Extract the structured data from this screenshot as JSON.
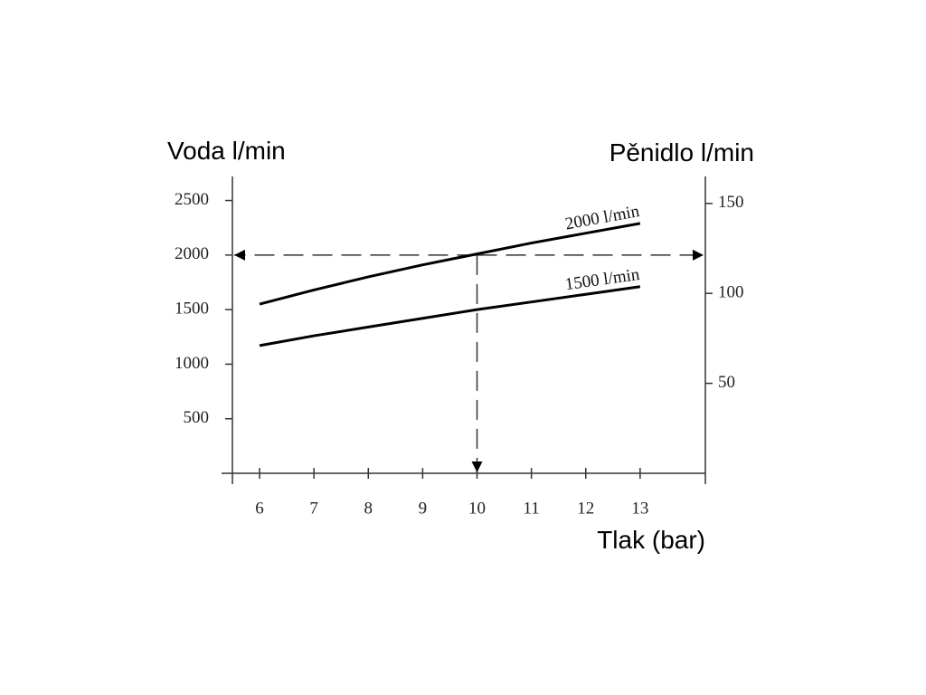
{
  "chart_data": {
    "type": "line",
    "y_title": "Voda l/min",
    "y2_title": "Pěnidlo l/min",
    "x_title": "Tlak (bar)",
    "x": [
      6,
      7,
      8,
      9,
      10,
      11,
      12,
      13
    ],
    "series": [
      {
        "name": "2000 l/min",
        "color": "#000000",
        "values": [
          1550,
          1680,
          1800,
          1910,
          2010,
          2110,
          2200,
          2290
        ]
      },
      {
        "name": "1500 l/min",
        "color": "#000000",
        "values": [
          1170,
          1260,
          1340,
          1420,
          1500,
          1570,
          1640,
          1710
        ]
      }
    ],
    "xlim": [
      5.5,
      14.2
    ],
    "xticks": [
      6,
      7,
      8,
      9,
      10,
      11,
      12,
      13
    ],
    "ylim": [
      0,
      2720
    ],
    "yticks": [
      500,
      1000,
      1500,
      2000,
      2500
    ],
    "y2lim": [
      0,
      165
    ],
    "y2ticks": [
      50,
      100,
      150
    ],
    "reference": {
      "x": 10,
      "y": 2000
    }
  }
}
